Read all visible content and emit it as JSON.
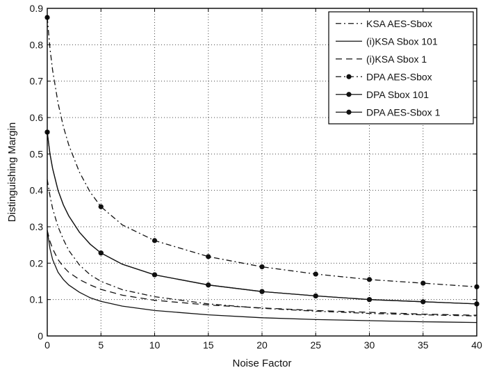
{
  "chart_data": {
    "type": "line",
    "title": "",
    "xlabel": "Noise Factor",
    "ylabel": "Distinguishing Margin",
    "xlim": [
      0,
      40
    ],
    "ylim": [
      0,
      0.9
    ],
    "x_ticks": [
      0,
      5,
      10,
      15,
      20,
      25,
      30,
      35,
      40
    ],
    "x_tick_labels": [
      "0",
      "5",
      "10",
      "15",
      "20",
      "25",
      "30",
      "35",
      "40"
    ],
    "y_ticks": [
      0,
      0.1,
      0.2,
      0.3,
      0.4,
      0.5,
      0.6,
      0.7,
      0.8,
      0.9
    ],
    "y_tick_labels": [
      "0",
      "0.1",
      "0.2",
      "0.3",
      "0.4",
      "0.5",
      "0.6",
      "0.7",
      "0.8",
      "0.9"
    ],
    "grid": true,
    "legend_position": "top-right",
    "series": [
      {
        "name": "KSA AES-Sbox",
        "style": "dashdot",
        "marker": "none",
        "x": [
          0,
          0.25,
          0.5,
          1,
          1.5,
          2,
          3,
          4,
          5,
          7,
          10,
          15,
          20,
          25,
          30,
          35,
          40
        ],
        "y": [
          0.43,
          0.385,
          0.35,
          0.3,
          0.265,
          0.235,
          0.195,
          0.168,
          0.15,
          0.127,
          0.108,
          0.088,
          0.076,
          0.068,
          0.062,
          0.058,
          0.055
        ]
      },
      {
        "name": "(i)KSA Sbox 101",
        "style": "solid",
        "marker": "none",
        "x": [
          0,
          0.25,
          0.5,
          1,
          1.5,
          2,
          3,
          4,
          5,
          7,
          10,
          15,
          20,
          25,
          30,
          35,
          40
        ],
        "y": [
          0.29,
          0.24,
          0.21,
          0.175,
          0.155,
          0.14,
          0.12,
          0.105,
          0.095,
          0.082,
          0.07,
          0.058,
          0.05,
          0.045,
          0.042,
          0.039,
          0.037
        ]
      },
      {
        "name": "(i)KSA Sbox 1",
        "style": "dashed",
        "marker": "none",
        "x": [
          0,
          0.25,
          0.5,
          1,
          1.5,
          2,
          3,
          4,
          5,
          7,
          10,
          15,
          20,
          25,
          30,
          35,
          40
        ],
        "y": [
          0.29,
          0.26,
          0.24,
          0.21,
          0.19,
          0.175,
          0.155,
          0.14,
          0.128,
          0.112,
          0.098,
          0.085,
          0.077,
          0.07,
          0.065,
          0.06,
          0.057
        ]
      },
      {
        "name": "DPA AES-Sbox",
        "style": "dashdot",
        "marker": "dot",
        "x": [
          0,
          0.25,
          0.5,
          1,
          1.5,
          2,
          3,
          4,
          5,
          7,
          10,
          15,
          20,
          25,
          30,
          35,
          40
        ],
        "y": [
          0.875,
          0.79,
          0.73,
          0.64,
          0.575,
          0.525,
          0.45,
          0.395,
          0.355,
          0.305,
          0.262,
          0.218,
          0.19,
          0.17,
          0.155,
          0.145,
          0.135
        ],
        "marker_x": [
          0,
          5,
          10,
          15,
          20,
          25,
          30,
          35,
          40
        ]
      },
      {
        "name": "DPA Sbox 101",
        "style": "solid",
        "marker": "dot",
        "x": [
          0,
          0.25,
          0.5,
          1,
          1.5,
          2,
          3,
          4,
          5,
          7,
          10,
          15,
          20,
          25,
          30,
          35,
          40
        ],
        "y": [
          0.56,
          0.5,
          0.46,
          0.4,
          0.36,
          0.33,
          0.285,
          0.252,
          0.228,
          0.197,
          0.168,
          0.14,
          0.122,
          0.11,
          0.1,
          0.094,
          0.088
        ],
        "marker_x": [
          0,
          5,
          10,
          15,
          20,
          25,
          30,
          35,
          40
        ]
      },
      {
        "name": "DPA AES-Sbox 1",
        "style": "solid",
        "marker": "dot",
        "x": [
          0,
          0.25,
          0.5,
          1,
          1.5,
          2,
          3,
          4,
          5,
          7,
          10,
          15,
          20,
          25,
          30,
          35,
          40
        ],
        "y": [
          0.56,
          0.5,
          0.46,
          0.4,
          0.36,
          0.33,
          0.285,
          0.252,
          0.228,
          0.197,
          0.168,
          0.14,
          0.122,
          0.11,
          0.1,
          0.094,
          0.088
        ],
        "marker_x": [
          0,
          5,
          10,
          15,
          20,
          25,
          30,
          35,
          40
        ]
      }
    ]
  }
}
